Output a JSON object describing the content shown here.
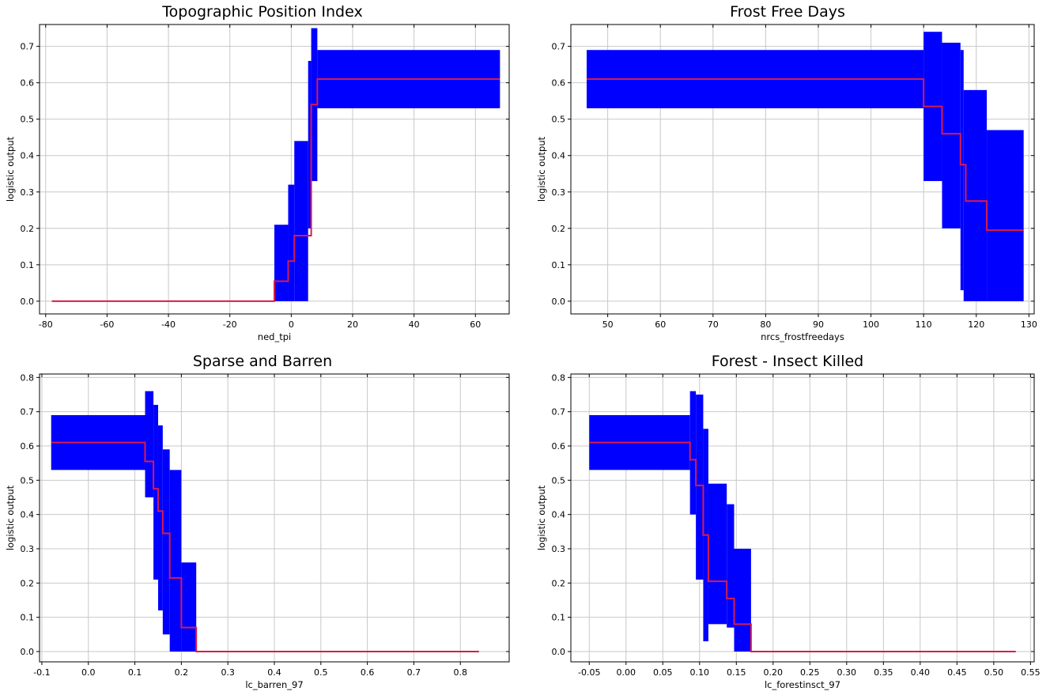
{
  "colors": {
    "band": "#0000ff",
    "line": "#d81b4c",
    "grid": "#c8c8c8",
    "frame": "#000000"
  },
  "chart_data": [
    {
      "type": "line",
      "title": "Topographic Position Index",
      "xlabel": "ned_tpi",
      "ylabel": "logistic output",
      "xlim": [
        -82,
        71
      ],
      "ylim": [
        -0.035,
        0.76
      ],
      "xticks": [
        -80,
        -60,
        -40,
        -20,
        0,
        20,
        40,
        60
      ],
      "yticks": [
        0.0,
        0.1,
        0.2,
        0.3,
        0.4,
        0.5,
        0.6,
        0.7
      ],
      "grid": true,
      "series": [
        {
          "x": [
            -78,
            -5.5,
            -5.5,
            -1,
            -1,
            1,
            1,
            6.5,
            6.5,
            8.5,
            8.5,
            68
          ],
          "y": [
            0.0,
            0.0,
            0.055,
            0.055,
            0.11,
            0.11,
            0.18,
            0.18,
            0.54,
            0.54,
            0.61,
            0.61
          ]
        }
      ],
      "bands": [
        [
          -78,
          -5.5,
          0,
          0
        ],
        [
          -5.5,
          -1,
          0,
          0.21
        ],
        [
          -1,
          1,
          0,
          0.32
        ],
        [
          1,
          5.5,
          0,
          0.44
        ],
        [
          5.5,
          6.5,
          0.2,
          0.66
        ],
        [
          6.5,
          8.5,
          0.33,
          0.75
        ],
        [
          8.5,
          68,
          0.53,
          0.69
        ]
      ]
    },
    {
      "type": "line",
      "title": "Frost Free Days",
      "xlabel": "nrcs_frostfreedays",
      "ylabel": "logistic output",
      "xlim": [
        43,
        131
      ],
      "ylim": [
        -0.035,
        0.76
      ],
      "xticks": [
        50,
        60,
        70,
        80,
        90,
        100,
        110,
        120,
        130
      ],
      "yticks": [
        0.0,
        0.1,
        0.2,
        0.3,
        0.4,
        0.5,
        0.6,
        0.7
      ],
      "grid": true,
      "series": [
        {
          "x": [
            46,
            110,
            110,
            113.5,
            113.5,
            117,
            117,
            118,
            118,
            122,
            122,
            129
          ],
          "y": [
            0.61,
            0.61,
            0.535,
            0.535,
            0.46,
            0.46,
            0.375,
            0.375,
            0.275,
            0.275,
            0.195,
            0.195
          ]
        }
      ],
      "bands": [
        [
          46,
          110,
          0.53,
          0.69
        ],
        [
          110,
          113.5,
          0.33,
          0.74
        ],
        [
          113.5,
          117,
          0.2,
          0.71
        ],
        [
          117,
          117.6,
          0.03,
          0.69
        ],
        [
          117.6,
          122,
          0.0,
          0.58
        ],
        [
          122,
          129,
          0.0,
          0.47
        ]
      ]
    },
    {
      "type": "line",
      "title": "Sparse and Barren",
      "xlabel": "lc_barren_97",
      "ylabel": "logistic output",
      "xlim": [
        -0.105,
        0.905
      ],
      "ylim": [
        -0.03,
        0.81
      ],
      "xticks": [
        -0.1,
        0.0,
        0.1,
        0.2,
        0.3,
        0.4,
        0.5,
        0.6,
        0.7,
        0.8
      ],
      "yticks": [
        0.0,
        0.1,
        0.2,
        0.3,
        0.4,
        0.5,
        0.6,
        0.7,
        0.8
      ],
      "grid": true,
      "series": [
        {
          "x": [
            -0.08,
            0.122,
            0.122,
            0.14,
            0.14,
            0.15,
            0.15,
            0.16,
            0.16,
            0.175,
            0.175,
            0.2,
            0.2,
            0.232,
            0.232,
            0.84
          ],
          "y": [
            0.61,
            0.61,
            0.555,
            0.555,
            0.475,
            0.475,
            0.41,
            0.41,
            0.345,
            0.345,
            0.215,
            0.215,
            0.07,
            0.07,
            0.0,
            0.0
          ]
        }
      ],
      "bands": [
        [
          -0.08,
          0.122,
          0.53,
          0.69
        ],
        [
          0.122,
          0.14,
          0.45,
          0.76
        ],
        [
          0.14,
          0.15,
          0.21,
          0.72
        ],
        [
          0.15,
          0.16,
          0.12,
          0.66
        ],
        [
          0.16,
          0.175,
          0.05,
          0.59
        ],
        [
          0.175,
          0.2,
          0.0,
          0.53
        ],
        [
          0.2,
          0.232,
          0.0,
          0.26
        ],
        [
          0.232,
          0.84,
          0,
          0
        ]
      ]
    },
    {
      "type": "line",
      "title": "Forest - Insect Killed",
      "xlabel": "lc_forestinsct_97",
      "ylabel": "logistic output",
      "xlim": [
        -0.075,
        0.555
      ],
      "ylim": [
        -0.03,
        0.81
      ],
      "xticks": [
        -0.05,
        0.0,
        0.05,
        0.1,
        0.15,
        0.2,
        0.25,
        0.3,
        0.35,
        0.4,
        0.45,
        0.5,
        0.55
      ],
      "yticks": [
        0.0,
        0.1,
        0.2,
        0.3,
        0.4,
        0.5,
        0.6,
        0.7,
        0.8
      ],
      "grid": true,
      "series": [
        {
          "x": [
            -0.05,
            0.087,
            0.087,
            0.095,
            0.095,
            0.105,
            0.105,
            0.112,
            0.112,
            0.137,
            0.137,
            0.147,
            0.147,
            0.17,
            0.17,
            0.53
          ],
          "y": [
            0.61,
            0.61,
            0.56,
            0.56,
            0.485,
            0.485,
            0.34,
            0.34,
            0.205,
            0.205,
            0.155,
            0.155,
            0.08,
            0.08,
            0.0,
            0.0
          ]
        }
      ],
      "bands": [
        [
          -0.05,
          0.087,
          0.53,
          0.69
        ],
        [
          0.087,
          0.095,
          0.4,
          0.76
        ],
        [
          0.095,
          0.105,
          0.21,
          0.75
        ],
        [
          0.105,
          0.112,
          0.03,
          0.65
        ],
        [
          0.112,
          0.137,
          0.08,
          0.49
        ],
        [
          0.137,
          0.147,
          0.07,
          0.43
        ],
        [
          0.147,
          0.17,
          0.0,
          0.3
        ],
        [
          0.17,
          0.53,
          0,
          0
        ]
      ]
    }
  ]
}
